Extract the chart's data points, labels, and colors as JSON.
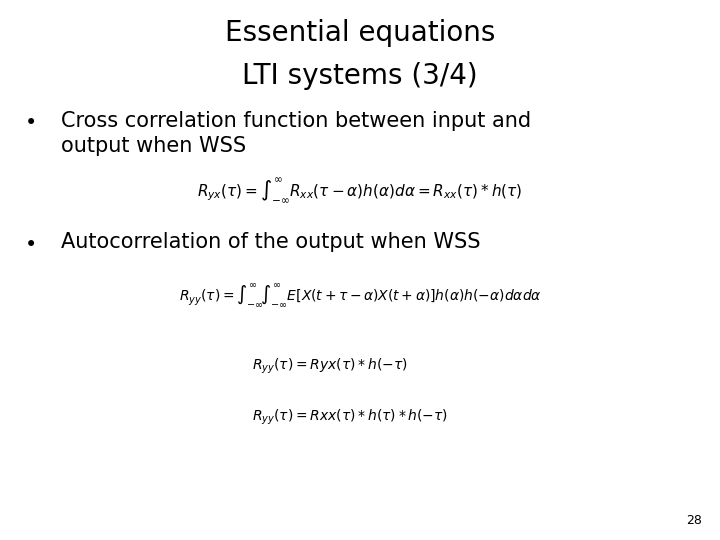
{
  "title_line1": "Essential equations",
  "title_line2": "LTI systems (3/4)",
  "bullet1_line1": "Cross correlation function between input and",
  "bullet1_line2": "output when WSS",
  "bullet2_text": "Autocorrelation of the output when WSS",
  "page_number": "28",
  "bg_color": "#ffffff",
  "text_color": "#000000",
  "title_fontsize": 20,
  "bullet_fontsize": 15,
  "eq1_fontsize": 11,
  "eq2_fontsize": 10,
  "eq3_fontsize": 10,
  "eq4_fontsize": 10,
  "page_fontsize": 9
}
